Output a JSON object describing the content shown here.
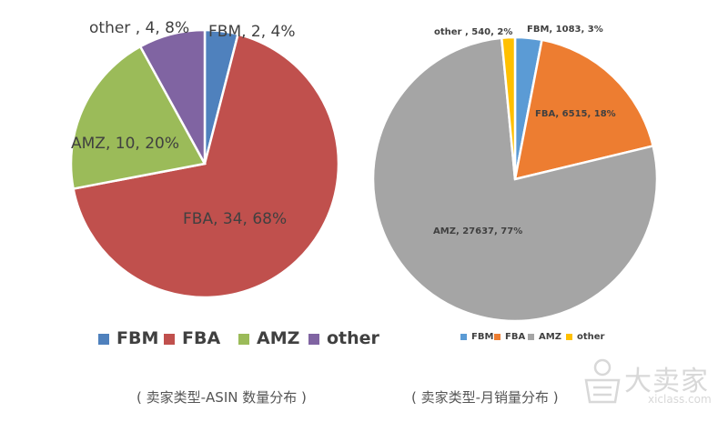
{
  "chart_data": [
    {
      "type": "pie",
      "title": "",
      "categories": [
        "FBM",
        "FBA",
        "AMZ",
        "other"
      ],
      "values": [
        2,
        34,
        10,
        4
      ],
      "percents": [
        "4%",
        "68%",
        "20%",
        "8%"
      ],
      "labels": [
        "FBM, 2, 4%",
        "FBA, 34, 68%",
        "AMZ, 10, 20%",
        "other , 4, 8%"
      ],
      "legend": [
        "FBM",
        "FBA",
        "AMZ",
        "other"
      ],
      "legend_position": "bottom",
      "colors": [
        "#4f81bd",
        "#c0504d",
        "#9bbb59",
        "#8064a2"
      ]
    },
    {
      "type": "pie",
      "title": "",
      "categories": [
        "FBM",
        "FBA",
        "AMZ",
        "other"
      ],
      "values": [
        1083,
        6515,
        27637,
        540
      ],
      "percents": [
        "3%",
        "18%",
        "77%",
        "2%"
      ],
      "labels": [
        "FBM, 1083, 3%",
        "FBA, 6515, 18%",
        "AMZ, 27637, 77%",
        "other , 540, 2%"
      ],
      "legend": [
        "FBM",
        "FBA",
        "AMZ",
        "other"
      ],
      "legend_position": "bottom",
      "colors": [
        "#5b9bd5",
        "#ed7d31",
        "#a5a5a5",
        "#ffc000"
      ]
    }
  ],
  "captions": {
    "left": "( 卖家类型-ASIN 数量分布 )",
    "right": "( 卖家类型-月销量分布 )"
  },
  "watermark": {
    "brand": "大卖家",
    "site": "xiclass.com"
  }
}
